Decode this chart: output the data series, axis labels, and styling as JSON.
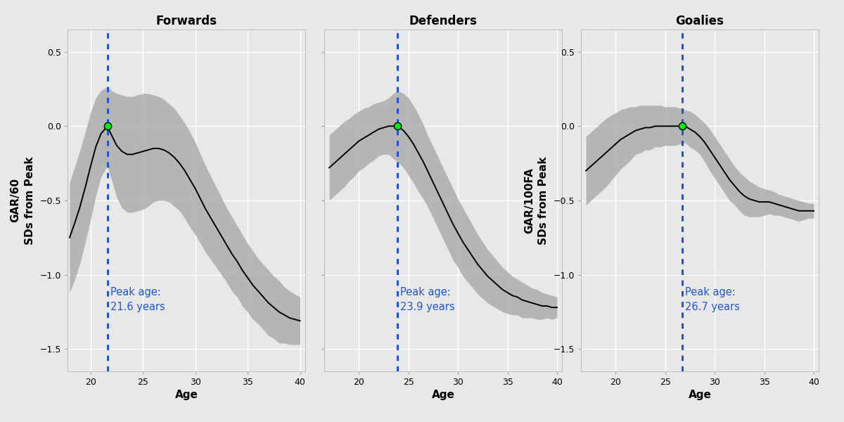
{
  "panels": [
    {
      "title": "Forwards",
      "peak_age": 21.6,
      "peak_label": "Peak age:\n21.6 years",
      "ylabel": "GAR/60\nSDs from Peak",
      "show_ylabel": true,
      "curve_ages": [
        18.0,
        18.5,
        19.0,
        19.5,
        20.0,
        20.5,
        21.0,
        21.5,
        21.6,
        22.0,
        22.5,
        23.0,
        23.5,
        24.0,
        24.5,
        25.0,
        25.5,
        26.0,
        26.5,
        27.0,
        27.5,
        28.0,
        28.5,
        29.0,
        29.5,
        30.0,
        30.5,
        31.0,
        31.5,
        32.0,
        32.5,
        33.0,
        33.5,
        34.0,
        34.5,
        35.0,
        35.5,
        36.0,
        36.5,
        37.0,
        37.5,
        38.0,
        38.5,
        39.0,
        39.5,
        40.0
      ],
      "curve_y": [
        -0.75,
        -0.65,
        -0.54,
        -0.41,
        -0.27,
        -0.14,
        -0.05,
        -0.01,
        0.0,
        -0.06,
        -0.13,
        -0.17,
        -0.19,
        -0.19,
        -0.18,
        -0.17,
        -0.16,
        -0.15,
        -0.15,
        -0.16,
        -0.18,
        -0.21,
        -0.25,
        -0.3,
        -0.36,
        -0.42,
        -0.49,
        -0.56,
        -0.62,
        -0.68,
        -0.74,
        -0.8,
        -0.86,
        -0.91,
        -0.97,
        -1.02,
        -1.07,
        -1.11,
        -1.15,
        -1.19,
        -1.22,
        -1.25,
        -1.27,
        -1.29,
        -1.3,
        -1.31
      ],
      "upper_y": [
        -0.38,
        -0.27,
        -0.16,
        -0.04,
        0.09,
        0.19,
        0.24,
        0.26,
        0.27,
        0.24,
        0.22,
        0.21,
        0.2,
        0.2,
        0.21,
        0.22,
        0.22,
        0.21,
        0.2,
        0.18,
        0.15,
        0.12,
        0.07,
        0.02,
        -0.04,
        -0.11,
        -0.19,
        -0.27,
        -0.34,
        -0.41,
        -0.48,
        -0.55,
        -0.61,
        -0.67,
        -0.73,
        -0.79,
        -0.84,
        -0.89,
        -0.93,
        -0.97,
        -1.01,
        -1.04,
        -1.08,
        -1.11,
        -1.13,
        -1.15
      ],
      "lower_y": [
        -1.12,
        -1.03,
        -0.92,
        -0.78,
        -0.63,
        -0.47,
        -0.34,
        -0.28,
        -0.27,
        -0.36,
        -0.48,
        -0.55,
        -0.58,
        -0.58,
        -0.57,
        -0.56,
        -0.54,
        -0.51,
        -0.5,
        -0.5,
        -0.51,
        -0.54,
        -0.57,
        -0.62,
        -0.68,
        -0.73,
        -0.79,
        -0.85,
        -0.9,
        -0.95,
        -1.0,
        -1.05,
        -1.11,
        -1.15,
        -1.21,
        -1.25,
        -1.3,
        -1.33,
        -1.37,
        -1.41,
        -1.43,
        -1.46,
        -1.46,
        -1.47,
        -1.47,
        -1.47
      ],
      "xticks": [
        20,
        25,
        30,
        35,
        40
      ],
      "xlim": [
        17.8,
        40.5
      ]
    },
    {
      "title": "Defenders",
      "peak_age": 23.9,
      "peak_label": "Peak age:\n23.9 years",
      "ylabel": "",
      "show_ylabel": false,
      "curve_ages": [
        17.0,
        17.5,
        18.0,
        18.5,
        19.0,
        19.5,
        20.0,
        20.5,
        21.0,
        21.5,
        22.0,
        22.5,
        23.0,
        23.5,
        23.9,
        24.5,
        25.0,
        25.5,
        26.0,
        26.5,
        27.0,
        27.5,
        28.0,
        28.5,
        29.0,
        29.5,
        30.0,
        30.5,
        31.0,
        31.5,
        32.0,
        32.5,
        33.0,
        33.5,
        34.0,
        34.5,
        35.0,
        35.5,
        36.0,
        36.5,
        37.0,
        37.5,
        38.0,
        38.5,
        39.0,
        39.5,
        40.0
      ],
      "curve_y": [
        -0.28,
        -0.25,
        -0.22,
        -0.19,
        -0.16,
        -0.13,
        -0.1,
        -0.08,
        -0.06,
        -0.04,
        -0.02,
        -0.01,
        0.0,
        0.0,
        0.0,
        -0.03,
        -0.07,
        -0.12,
        -0.18,
        -0.24,
        -0.31,
        -0.38,
        -0.45,
        -0.52,
        -0.59,
        -0.66,
        -0.72,
        -0.78,
        -0.83,
        -0.88,
        -0.93,
        -0.97,
        -1.01,
        -1.04,
        -1.07,
        -1.1,
        -1.12,
        -1.14,
        -1.15,
        -1.17,
        -1.18,
        -1.19,
        -1.2,
        -1.21,
        -1.21,
        -1.22,
        -1.22
      ],
      "upper_y": [
        -0.06,
        -0.03,
        0.0,
        0.03,
        0.05,
        0.08,
        0.1,
        0.12,
        0.13,
        0.15,
        0.16,
        0.17,
        0.19,
        0.22,
        0.24,
        0.22,
        0.19,
        0.14,
        0.08,
        0.01,
        -0.07,
        -0.14,
        -0.21,
        -0.28,
        -0.35,
        -0.42,
        -0.49,
        -0.55,
        -0.61,
        -0.67,
        -0.73,
        -0.78,
        -0.83,
        -0.87,
        -0.91,
        -0.95,
        -0.98,
        -1.01,
        -1.03,
        -1.05,
        -1.07,
        -1.09,
        -1.1,
        -1.12,
        -1.13,
        -1.14,
        -1.15
      ],
      "lower_y": [
        -0.5,
        -0.47,
        -0.44,
        -0.41,
        -0.37,
        -0.34,
        -0.3,
        -0.28,
        -0.25,
        -0.23,
        -0.2,
        -0.19,
        -0.19,
        -0.22,
        -0.24,
        -0.28,
        -0.33,
        -0.38,
        -0.44,
        -0.49,
        -0.55,
        -0.62,
        -0.69,
        -0.76,
        -0.83,
        -0.9,
        -0.95,
        -1.01,
        -1.05,
        -1.09,
        -1.13,
        -1.16,
        -1.19,
        -1.21,
        -1.23,
        -1.25,
        -1.26,
        -1.27,
        -1.27,
        -1.29,
        -1.29,
        -1.29,
        -1.3,
        -1.3,
        -1.29,
        -1.3,
        -1.29
      ],
      "xticks": [
        20,
        25,
        30,
        35,
        40
      ],
      "xlim": [
        16.5,
        40.5
      ]
    },
    {
      "title": "Goalies",
      "peak_age": 26.7,
      "peak_label": "Peak age:\n26.7 years",
      "ylabel": "GAR/100FA\nSDs from Peak",
      "show_ylabel": true,
      "curve_ages": [
        17.0,
        17.5,
        18.0,
        18.5,
        19.0,
        19.5,
        20.0,
        20.5,
        21.0,
        21.5,
        22.0,
        22.5,
        23.0,
        23.5,
        24.0,
        24.5,
        25.0,
        25.5,
        26.0,
        26.5,
        26.7,
        27.0,
        27.5,
        28.0,
        28.5,
        29.0,
        29.5,
        30.0,
        30.5,
        31.0,
        31.5,
        32.0,
        32.5,
        33.0,
        33.5,
        34.0,
        34.5,
        35.0,
        35.5,
        36.0,
        36.5,
        37.0,
        37.5,
        38.0,
        38.5,
        39.0,
        39.5,
        40.0
      ],
      "curve_y": [
        -0.3,
        -0.27,
        -0.24,
        -0.21,
        -0.18,
        -0.15,
        -0.12,
        -0.09,
        -0.07,
        -0.05,
        -0.03,
        -0.02,
        -0.01,
        -0.01,
        0.0,
        0.0,
        0.0,
        0.0,
        0.0,
        0.0,
        0.0,
        0.0,
        -0.02,
        -0.04,
        -0.07,
        -0.11,
        -0.16,
        -0.21,
        -0.26,
        -0.31,
        -0.36,
        -0.4,
        -0.44,
        -0.47,
        -0.49,
        -0.5,
        -0.51,
        -0.51,
        -0.51,
        -0.52,
        -0.53,
        -0.54,
        -0.55,
        -0.56,
        -0.57,
        -0.57,
        -0.57,
        -0.57
      ],
      "upper_y": [
        -0.07,
        -0.04,
        -0.01,
        0.02,
        0.05,
        0.07,
        0.09,
        0.11,
        0.12,
        0.13,
        0.13,
        0.14,
        0.14,
        0.14,
        0.14,
        0.14,
        0.13,
        0.13,
        0.13,
        0.12,
        0.12,
        0.11,
        0.1,
        0.08,
        0.05,
        0.02,
        -0.02,
        -0.07,
        -0.12,
        -0.17,
        -0.22,
        -0.27,
        -0.31,
        -0.34,
        -0.37,
        -0.39,
        -0.41,
        -0.42,
        -0.43,
        -0.44,
        -0.46,
        -0.47,
        -0.48,
        -0.49,
        -0.5,
        -0.51,
        -0.52,
        -0.52
      ],
      "lower_y": [
        -0.53,
        -0.5,
        -0.47,
        -0.44,
        -0.41,
        -0.37,
        -0.33,
        -0.29,
        -0.26,
        -0.23,
        -0.19,
        -0.18,
        -0.16,
        -0.16,
        -0.14,
        -0.14,
        -0.13,
        -0.13,
        -0.13,
        -0.12,
        -0.12,
        -0.11,
        -0.14,
        -0.16,
        -0.19,
        -0.24,
        -0.3,
        -0.35,
        -0.4,
        -0.45,
        -0.5,
        -0.53,
        -0.57,
        -0.6,
        -0.61,
        -0.61,
        -0.61,
        -0.6,
        -0.59,
        -0.6,
        -0.6,
        -0.61,
        -0.62,
        -0.63,
        -0.64,
        -0.63,
        -0.62,
        -0.62
      ],
      "xticks": [
        20,
        25,
        30,
        35,
        40
      ],
      "xlim": [
        16.5,
        40.5
      ]
    }
  ],
  "ylim": [
    -1.65,
    0.65
  ],
  "yticks": [
    -1.5,
    -1.0,
    -0.5,
    0.0,
    0.5
  ],
  "bg_color": "#E8E8E8",
  "panel_bg": "#E8E8E8",
  "curve_color": "black",
  "band_color": "#B0B0B0",
  "band_alpha": 0.9,
  "vline_color": "#2255CC",
  "peak_dot_color": "#00EE00",
  "peak_dot_edge": "black",
  "peak_text_color": "#2255CC",
  "grid_color": "white",
  "annotation_fontsize": 10.5,
  "title_fontsize": 12,
  "axis_label_fontsize": 11,
  "tick_fontsize": 9
}
